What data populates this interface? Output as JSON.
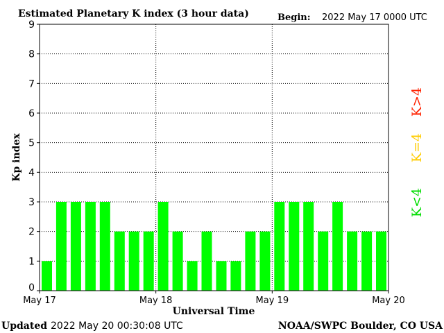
{
  "chart_data": {
    "type": "bar",
    "title": "Estimated Planetary K index (3 hour data)",
    "begin_label": "Begin:",
    "begin_value": "2022 May 17 0000 UTC",
    "ylabel": "Kp index",
    "xlabel": "Universal Time",
    "ylim": [
      0,
      9
    ],
    "y_ticks": [
      "0",
      "1",
      "2",
      "3",
      "4",
      "5",
      "6",
      "7",
      "8",
      "9"
    ],
    "x_ticks": [
      "May 17",
      "May 18",
      "May 19",
      "May 20"
    ],
    "values": [
      1,
      3,
      3,
      3,
      3,
      2,
      2,
      2,
      3,
      2,
      1,
      2,
      1,
      1,
      2,
      2,
      3,
      3,
      3,
      2,
      3,
      2,
      2,
      2
    ],
    "grid": true,
    "bar_color": "#00ff00",
    "legend": [
      {
        "label": "K<4",
        "color": "#00dd00"
      },
      {
        "label": "K=4",
        "color": "#ffcc00"
      },
      {
        "label": "K>4",
        "color": "#ff2200"
      }
    ],
    "legend_placement": "right"
  },
  "footer": {
    "updated_label": "Updated",
    "updated_value": "2022 May 20 00:30:08 UTC",
    "credit": "NOAA/SWPC Boulder, CO USA"
  }
}
